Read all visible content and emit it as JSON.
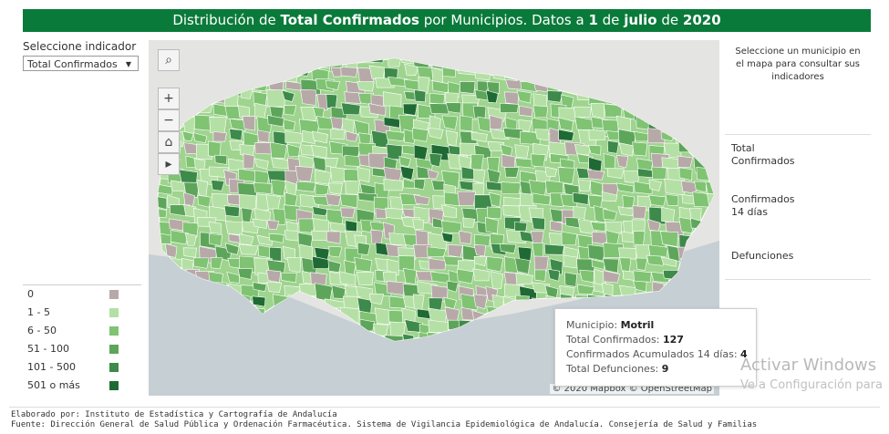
{
  "title": {
    "part1": "Distribución de ",
    "indicator": "Total Confirmados",
    "part2": " por Municipios. Datos a ",
    "day": "1",
    "part3": " de ",
    "month": "julio",
    "part4": " de ",
    "year": "2020"
  },
  "selector": {
    "label": "Seleccione indicador",
    "value": "Total Confirmados"
  },
  "legend": [
    {
      "label": "0",
      "color": "#b8a9a9"
    },
    {
      "label": "1 - 5",
      "color": "#b5e0a5"
    },
    {
      "label": "6 - 50",
      "color": "#7fc373"
    },
    {
      "label": "51 - 100",
      "color": "#5da55a"
    },
    {
      "label": "101 - 500",
      "color": "#3d8a4a"
    },
    {
      "label": "501 o más",
      "color": "#1f6a34"
    }
  ],
  "map": {
    "attribution": "© 2020 Mapbox  © OpenStreetMap",
    "controls": {
      "search": "search-icon",
      "zoom_in": "+",
      "zoom_out": "−",
      "home": "home-icon",
      "play": "play-icon"
    }
  },
  "tooltip": {
    "municipio_label": "Municipio: ",
    "municipio_value": "Motril",
    "total_label": "Total Confirmados: ",
    "total_value": "127",
    "acum_label": "Confirmados Acumulados 14 días: ",
    "acum_value": "4",
    "def_label": "Total Defunciones: ",
    "def_value": "9"
  },
  "right_panel": {
    "instruction": "Seleccione un municipio en el mapa para consultar sus indicadores",
    "indicators": [
      {
        "line1": "Total",
        "line2": "Confirmados"
      },
      {
        "line1": "Confirmados",
        "line2": "14 días"
      },
      {
        "line1": "Defunciones",
        "line2": ""
      }
    ]
  },
  "watermark": {
    "title": "Activar Windows",
    "subtitle": "Ve a Configuración para"
  },
  "footer": {
    "line1": "Elaborado por: Instituto de Estadística y Cartografía de Andalucía",
    "line2": "Fuente: Dirección General de Salud Pública y Ordenación Farmacéutica. Sistema de Vigilancia Epidemiológica de Andalucía. Consejería de Salud y Familias"
  }
}
